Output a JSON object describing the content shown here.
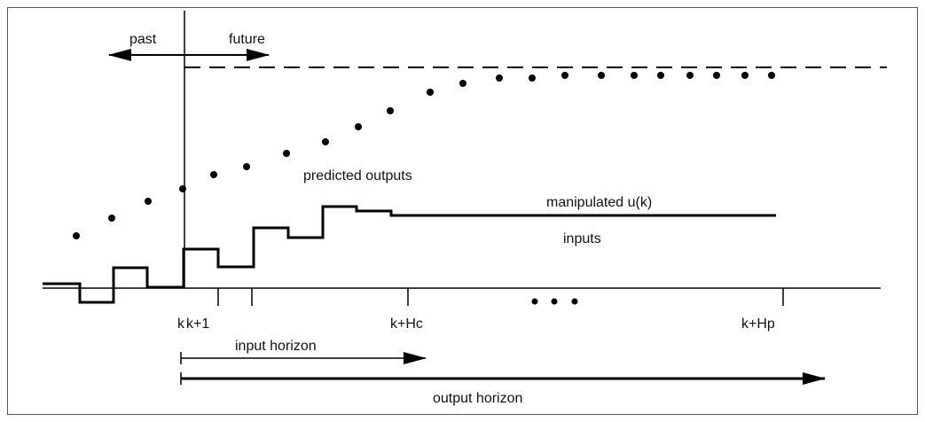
{
  "labels": {
    "past": "past",
    "future": "future",
    "predicted_outputs": "predicted outputs",
    "manipulated": "manipulated u(k)",
    "inputs": "inputs",
    "k": "k",
    "k1": "k+1",
    "k_hc": "k+Hc",
    "k_hp": "k+Hp",
    "input_horizon": "input horizon",
    "output_horizon": "output horizon"
  }
}
